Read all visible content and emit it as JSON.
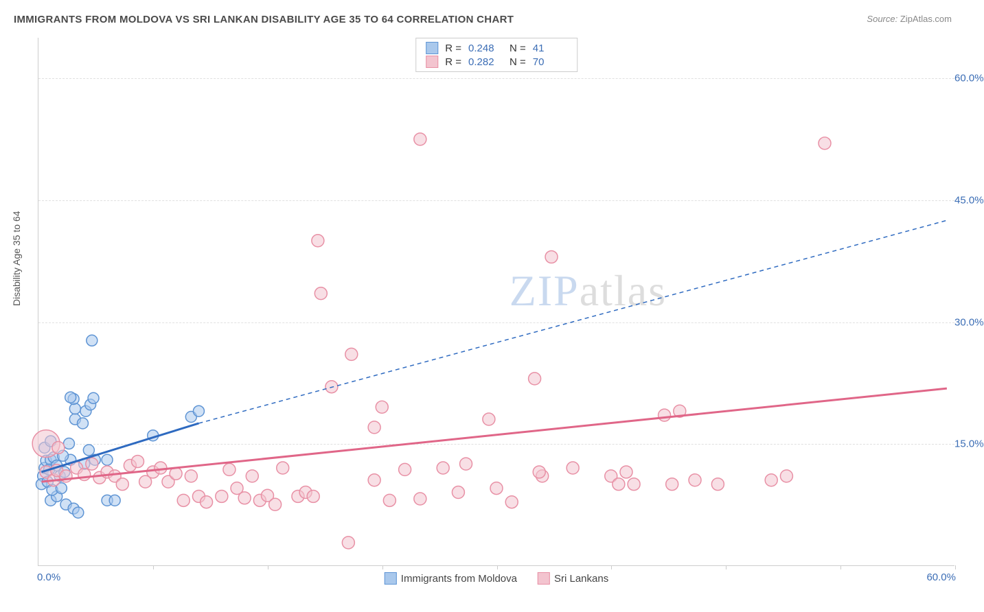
{
  "title": "IMMIGRANTS FROM MOLDOVA VS SRI LANKAN DISABILITY AGE 35 TO 64 CORRELATION CHART",
  "source_label": "Source:",
  "source_name": "ZipAtlas.com",
  "ylabel": "Disability Age 35 to 64",
  "watermark_zip": "ZIP",
  "watermark_atlas": "atlas",
  "chart": {
    "type": "scatter",
    "xlim": [
      0,
      60
    ],
    "ylim": [
      0,
      65
    ],
    "ytick_labels": [
      "15.0%",
      "30.0%",
      "45.0%",
      "60.0%"
    ],
    "ytick_values": [
      15,
      30,
      45,
      60
    ],
    "xtick_values": [
      7.5,
      15,
      22.5,
      30,
      37.5,
      45,
      52.5,
      60
    ],
    "x_origin_label": "0.0%",
    "x_max_label": "60.0%",
    "background_color": "#ffffff",
    "grid_color": "#e0e0e0",
    "series": [
      {
        "name": "Immigrants from Moldova",
        "fill": "#a9c8ec",
        "stroke": "#5e94d4",
        "line_stroke": "#2e6ac0",
        "marker_r": 8,
        "marker_opacity": 0.55,
        "R": "0.248",
        "N": "41",
        "trend": {
          "x1": 0.2,
          "y1": 11.5,
          "x2": 10.5,
          "y2": 17.5,
          "dash_x2": 59.5,
          "dash_y2": 42.5
        },
        "points": [
          [
            0.3,
            11.0
          ],
          [
            0.4,
            12.0
          ],
          [
            0.5,
            12.9
          ],
          [
            0.2,
            10.0
          ],
          [
            0.8,
            13.0
          ],
          [
            0.7,
            11.8
          ],
          [
            1.0,
            13.3
          ],
          [
            0.6,
            10.3
          ],
          [
            0.4,
            14.5
          ],
          [
            0.8,
            15.3
          ],
          [
            1.2,
            12.3
          ],
          [
            1.4,
            11.0
          ],
          [
            1.7,
            11.5
          ],
          [
            0.8,
            8.0
          ],
          [
            1.2,
            8.5
          ],
          [
            1.8,
            7.5
          ],
          [
            2.0,
            15.0
          ],
          [
            2.1,
            13.0
          ],
          [
            2.4,
            18.0
          ],
          [
            2.4,
            19.3
          ],
          [
            2.3,
            20.5
          ],
          [
            2.1,
            20.7
          ],
          [
            2.9,
            17.5
          ],
          [
            3.1,
            19.0
          ],
          [
            3.4,
            19.8
          ],
          [
            3.6,
            20.6
          ],
          [
            3.0,
            12.5
          ],
          [
            3.7,
            13.0
          ],
          [
            4.5,
            13.0
          ],
          [
            4.5,
            8.0
          ],
          [
            5.0,
            8.0
          ],
          [
            2.3,
            7.0
          ],
          [
            2.6,
            6.5
          ],
          [
            3.3,
            14.2
          ],
          [
            3.5,
            27.7
          ],
          [
            7.5,
            16.0
          ],
          [
            10.0,
            18.3
          ],
          [
            10.5,
            19.0
          ],
          [
            0.9,
            9.3
          ],
          [
            1.5,
            9.5
          ],
          [
            1.6,
            13.5
          ]
        ]
      },
      {
        "name": "Sri Lankans",
        "fill": "#f3c4cf",
        "stroke": "#e890a5",
        "line_stroke": "#e06688",
        "marker_r": 9,
        "marker_opacity": 0.55,
        "R": "0.282",
        "N": "70",
        "trend": {
          "x1": 0.2,
          "y1": 10.3,
          "x2": 59.5,
          "y2": 21.8
        },
        "points": [
          [
            0.5,
            11.5
          ],
          [
            1.0,
            10.5
          ],
          [
            1.2,
            11.7
          ],
          [
            1.3,
            14.5
          ],
          [
            1.8,
            11.0
          ],
          [
            2.5,
            12.0
          ],
          [
            3.0,
            11.2
          ],
          [
            3.5,
            12.5
          ],
          [
            4.0,
            10.8
          ],
          [
            4.5,
            11.5
          ],
          [
            5.0,
            11.0
          ],
          [
            5.5,
            10.0
          ],
          [
            6.0,
            12.3
          ],
          [
            6.5,
            12.8
          ],
          [
            7.0,
            10.3
          ],
          [
            7.5,
            11.5
          ],
          [
            8.0,
            12.0
          ],
          [
            8.5,
            10.3
          ],
          [
            9.0,
            11.3
          ],
          [
            9.5,
            8.0
          ],
          [
            10.0,
            11.0
          ],
          [
            10.5,
            8.5
          ],
          [
            11.0,
            7.8
          ],
          [
            12.0,
            8.5
          ],
          [
            12.5,
            11.8
          ],
          [
            13.0,
            9.5
          ],
          [
            13.5,
            8.3
          ],
          [
            14.0,
            11.0
          ],
          [
            14.5,
            8.0
          ],
          [
            15.0,
            8.6
          ],
          [
            15.5,
            7.5
          ],
          [
            16.0,
            12.0
          ],
          [
            17.0,
            8.5
          ],
          [
            17.5,
            9.0
          ],
          [
            18.0,
            8.5
          ],
          [
            18.3,
            40.0
          ],
          [
            18.5,
            33.5
          ],
          [
            19.2,
            22.0
          ],
          [
            20.3,
            2.8
          ],
          [
            20.5,
            26.0
          ],
          [
            22.0,
            10.5
          ],
          [
            22.0,
            17.0
          ],
          [
            22.5,
            19.5
          ],
          [
            23.0,
            8.0
          ],
          [
            24.0,
            11.8
          ],
          [
            25.0,
            8.2
          ],
          [
            25.0,
            52.5
          ],
          [
            26.5,
            12.0
          ],
          [
            27.5,
            9.0
          ],
          [
            28.0,
            12.5
          ],
          [
            29.5,
            18.0
          ],
          [
            30.0,
            9.5
          ],
          [
            31.0,
            7.8
          ],
          [
            32.5,
            23.0
          ],
          [
            33.0,
            11.0
          ],
          [
            33.6,
            38.0
          ],
          [
            35.0,
            12.0
          ],
          [
            37.5,
            11.0
          ],
          [
            38.0,
            10.0
          ],
          [
            38.5,
            11.5
          ],
          [
            39.0,
            10.0
          ],
          [
            41.0,
            18.5
          ],
          [
            41.5,
            10.0
          ],
          [
            42.0,
            19.0
          ],
          [
            43.0,
            10.5
          ],
          [
            44.5,
            10.0
          ],
          [
            48.0,
            10.5
          ],
          [
            49.0,
            11.0
          ],
          [
            51.5,
            52.0
          ],
          [
            32.8,
            11.5
          ]
        ],
        "big_point": {
          "x": 0.5,
          "y": 15.0,
          "r": 20
        }
      }
    ],
    "legend_top": [
      {
        "series_index": 0
      },
      {
        "series_index": 1
      }
    ],
    "legend_bottom": [
      {
        "series_index": 0
      },
      {
        "series_index": 1
      }
    ]
  }
}
